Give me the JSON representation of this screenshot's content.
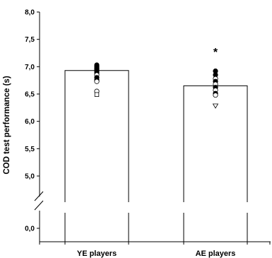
{
  "chart_data": {
    "type": "bar",
    "ylabel": "COD test performance (s)",
    "categories": [
      "YE players",
      "AE players"
    ],
    "values": [
      6.93,
      6.65
    ],
    "ylim": [
      5.0,
      8.0
    ],
    "y_ticks_upper": [
      "5,0",
      "5,5",
      "6,0",
      "6,5",
      "7,0",
      "7,5",
      "8,0"
    ],
    "y_tick_values": [
      5.0,
      5.5,
      6.0,
      6.5,
      7.0,
      7.5,
      8.0
    ],
    "y_tick_lower": "0,0",
    "axis_break": true,
    "annotations": [
      {
        "category": "AE players",
        "text": "*"
      }
    ],
    "individual_points": [
      {
        "category": "YE players",
        "points": [
          {
            "value": 7.03,
            "marker": "filled-circle"
          },
          {
            "value": 7.0,
            "marker": "filled-circle"
          },
          {
            "value": 6.97,
            "marker": "filled-circle"
          },
          {
            "value": 6.95,
            "marker": "filled-circle"
          },
          {
            "value": 6.92,
            "marker": "filled-circle"
          },
          {
            "value": 6.89,
            "marker": "filled-circle"
          },
          {
            "value": 6.85,
            "marker": "open-circle"
          },
          {
            "value": 6.8,
            "marker": "filled-circle"
          },
          {
            "value": 6.76,
            "marker": "filled-circle"
          },
          {
            "value": 6.73,
            "marker": "open-circle"
          },
          {
            "value": 6.55,
            "marker": "open-circle"
          },
          {
            "value": 6.49,
            "marker": "open-square"
          }
        ]
      },
      {
        "category": "AE players",
        "points": [
          {
            "value": 6.92,
            "marker": "filled-circle"
          },
          {
            "value": 6.85,
            "marker": "filled-circle"
          },
          {
            "value": 6.78,
            "marker": "open-circle"
          },
          {
            "value": 6.73,
            "marker": "filled-circle"
          },
          {
            "value": 6.68,
            "marker": "open-circle"
          },
          {
            "value": 6.62,
            "marker": "filled-circle"
          },
          {
            "value": 6.57,
            "marker": "open-circle"
          },
          {
            "value": 6.51,
            "marker": "filled-circle"
          },
          {
            "value": 6.48,
            "marker": "open-circle"
          },
          {
            "value": 6.28,
            "marker": "open-triangle-down"
          }
        ]
      }
    ]
  }
}
